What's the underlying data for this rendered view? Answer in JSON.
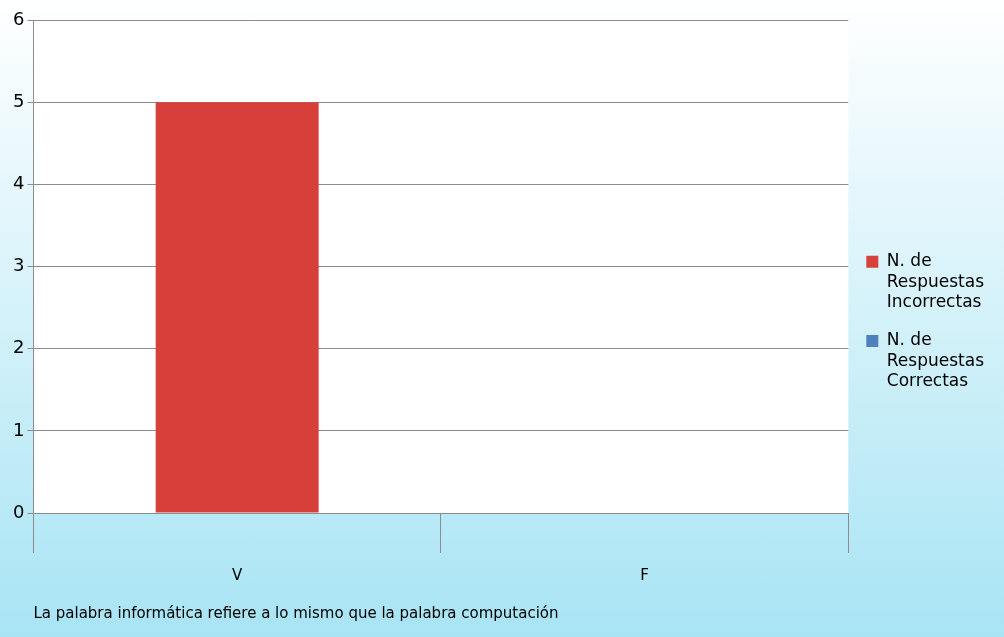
{
  "chart_data": {
    "type": "bar",
    "xlabel": "La palabra informática refiere a lo mismo que la palabra computación",
    "categories": [
      "V",
      "F"
    ],
    "stacked": true,
    "series": [
      {
        "name": "N. de Respuestas Incorrectas",
        "color": "#d7403a",
        "values": [
          5,
          0
        ]
      },
      {
        "name": "N. de Respuestas Correctas",
        "color": "#4f81bd",
        "values": [
          0,
          0
        ]
      }
    ],
    "ylim": [
      0,
      6
    ],
    "yticks": [
      0,
      1,
      2,
      3,
      4,
      5,
      6
    ],
    "grid": "y",
    "legend": "right"
  }
}
